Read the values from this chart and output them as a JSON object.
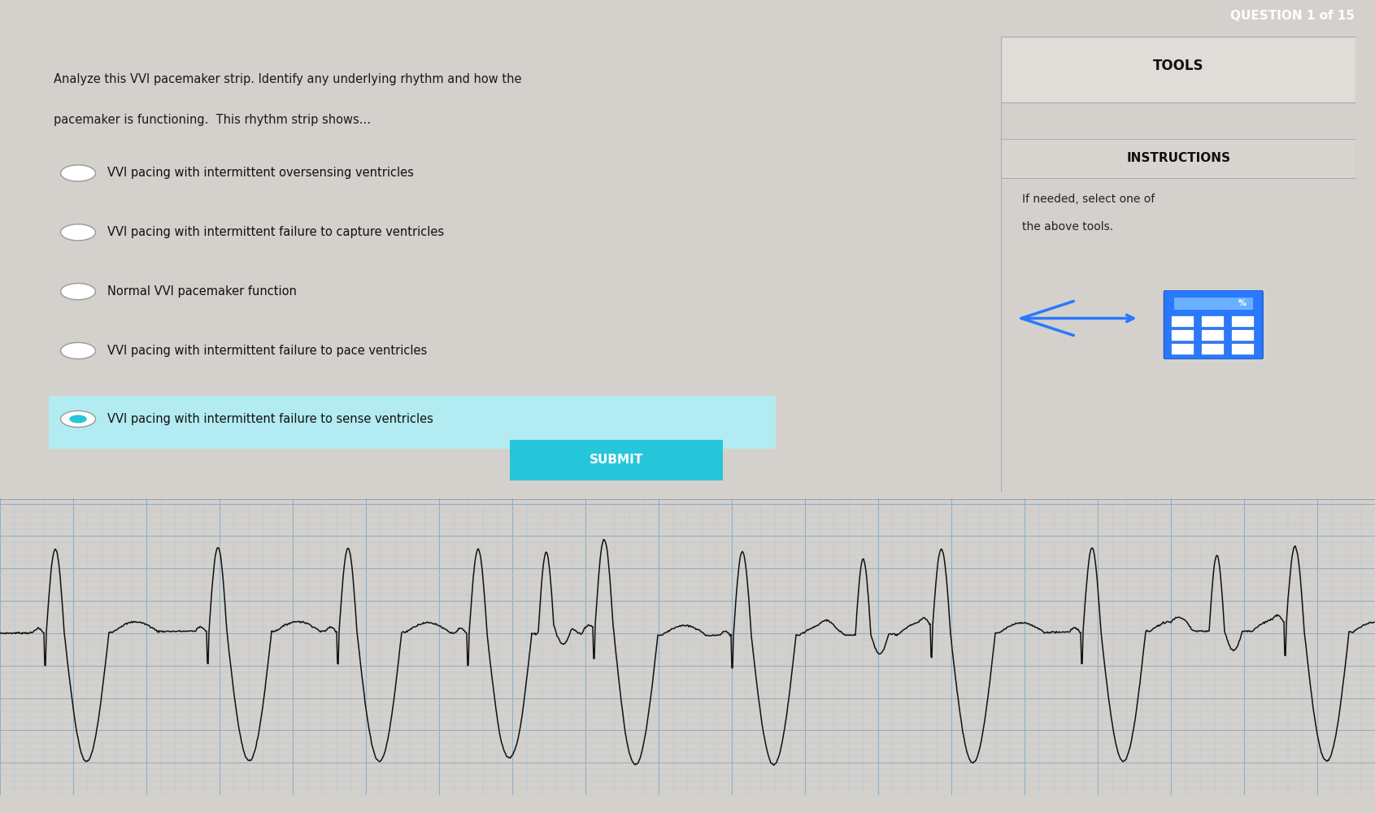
{
  "title": "QUESTION 1 of 15",
  "question_text_line1": "Analyze this VVI pacemaker strip. Identify any underlying rhythm and how the",
  "question_text_line2": "pacemaker is functioning.  This rhythm strip shows...",
  "options": [
    "VVI pacing with intermittent oversensing ventricles",
    "VVI pacing with intermittent failure to capture ventricles",
    "Normal VVI pacemaker function",
    "VVI pacing with intermittent failure to pace ventricles",
    "VVI pacing with intermittent failure to sense ventricles"
  ],
  "selected_option": 4,
  "tools_title": "TOOLS",
  "instructions_title": "INSTRUCTIONS",
  "instructions_text_line1": "If needed, select one of",
  "instructions_text_line2": "the above tools.",
  "submit_text": "SUBMIT",
  "bg_color": "#d4d0cb",
  "content_bg": "#eceae4",
  "right_panel_bg": "#e8e6e0",
  "header_bg": "#4a4a4a",
  "header_text_color": "#ffffff",
  "teal_color": "#26c6da",
  "teal_light": "#b2ebf2",
  "submit_color": "#26c6da",
  "grid_bg": "#ccdbe8",
  "grid_minor_color": "#b0c8dc",
  "grid_major_color": "#8aafc8",
  "ecg_color": "#111111",
  "tools_header_bg": "#e0ddd8",
  "instructions_header_bg": "#d8d5d0",
  "separator_color": "#aaaaaa",
  "ecg_strip_border": "#888888"
}
